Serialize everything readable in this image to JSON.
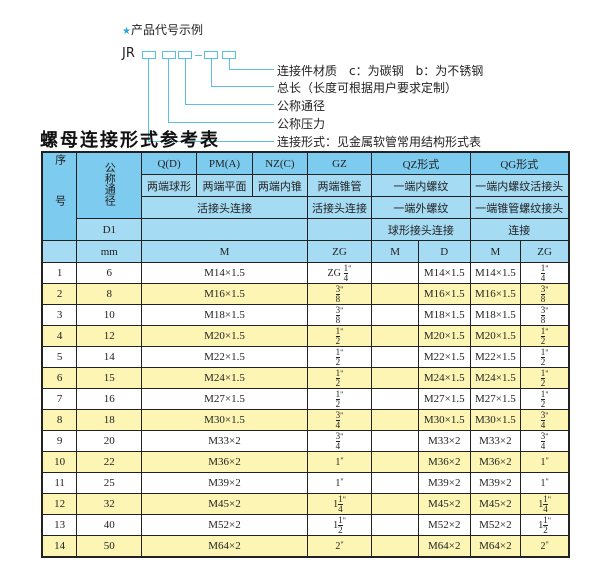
{
  "legend": {
    "heading": "产品代号示例",
    "code_prefix": "JR",
    "items": [
      "连接件材质　c：为碳钢　b：为不锈钢",
      "总长（长度可根据用户要求定制）",
      "公称通径",
      "公称压力",
      "连接形式：见金属软管常用结构形式表"
    ],
    "accent_color": "#5bbfe0"
  },
  "title": "螺母连接形式参考表",
  "header": {
    "seq": "序号",
    "nominal": "公称通径",
    "q": "Q(D)",
    "pm": "PM(A)",
    "nz": "NZ(C)",
    "gz": "GZ",
    "qz": "QZ形式",
    "qg": "QG形式",
    "q2": "两端球形",
    "pm2": "两端平面",
    "nz2": "两端内锥",
    "gz2": "两端锥管",
    "qz2": "一端内螺纹",
    "qg2": "一端内螺纹活接头",
    "union": "活接头连接",
    "gz3": "活接头连接",
    "qz3": "一端外螺纹",
    "qg3": "一端锥管螺纹接头",
    "d1": "D1",
    "qz4": "球形接头连接",
    "qg4": "连接",
    "mm": "mm",
    "m": "M",
    "zg": "ZG",
    "qz_m": "M",
    "qz_d": "D",
    "qg_m": "M",
    "qg_zg": "ZG"
  },
  "colors": {
    "header": "#7dcbee",
    "row_alt": "#fdf5b4"
  },
  "rows": [
    {
      "no": "1",
      "dn": "6",
      "m": "M14×1.5",
      "zg": {
        "pre": "ZG",
        "int": "",
        "num": "1",
        "den": "4",
        "suf": "\""
      },
      "qz_m": "",
      "qz_d": "M14×1.5",
      "qg_m": "M14×1.5",
      "qg_zg": {
        "pre": "",
        "int": "",
        "num": "1",
        "den": "4",
        "suf": "\""
      }
    },
    {
      "no": "2",
      "dn": "8",
      "m": "M16×1.5",
      "zg": {
        "pre": "",
        "int": "",
        "num": "3",
        "den": "8",
        "suf": "\""
      },
      "qz_m": "",
      "qz_d": "M16×1.5",
      "qg_m": "M16×1.5",
      "qg_zg": {
        "pre": "",
        "int": "",
        "num": "3",
        "den": "8",
        "suf": "\""
      }
    },
    {
      "no": "3",
      "dn": "10",
      "m": "M18×1.5",
      "zg": {
        "pre": "",
        "int": "",
        "num": "3",
        "den": "8",
        "suf": "\""
      },
      "qz_m": "",
      "qz_d": "M18×1.5",
      "qg_m": "M18×1.5",
      "qg_zg": {
        "pre": "",
        "int": "",
        "num": "3",
        "den": "8",
        "suf": "\""
      }
    },
    {
      "no": "4",
      "dn": "12",
      "m": "M20×1.5",
      "zg": {
        "pre": "",
        "int": "",
        "num": "1",
        "den": "2",
        "suf": "\""
      },
      "qz_m": "",
      "qz_d": "M20×1.5",
      "qg_m": "M20×1.5",
      "qg_zg": {
        "pre": "",
        "int": "",
        "num": "1",
        "den": "2",
        "suf": "\""
      }
    },
    {
      "no": "5",
      "dn": "14",
      "m": "M22×1.5",
      "zg": {
        "pre": "",
        "int": "",
        "num": "1",
        "den": "2",
        "suf": "\""
      },
      "qz_m": "",
      "qz_d": "M22×1.5",
      "qg_m": "M22×1.5",
      "qg_zg": {
        "pre": "",
        "int": "",
        "num": "1",
        "den": "2",
        "suf": "\""
      }
    },
    {
      "no": "6",
      "dn": "15",
      "m": "M24×1.5",
      "zg": {
        "pre": "",
        "int": "",
        "num": "1",
        "den": "2",
        "suf": "\""
      },
      "qz_m": "",
      "qz_d": "M24×1.5",
      "qg_m": "M24×1.5",
      "qg_zg": {
        "pre": "",
        "int": "",
        "num": "1",
        "den": "2",
        "suf": "\""
      }
    },
    {
      "no": "7",
      "dn": "16",
      "m": "M27×1.5",
      "zg": {
        "pre": "",
        "int": "",
        "num": "1",
        "den": "2",
        "suf": "\""
      },
      "qz_m": "",
      "qz_d": "M27×1.5",
      "qg_m": "M27×1.5",
      "qg_zg": {
        "pre": "",
        "int": "",
        "num": "1",
        "den": "2",
        "suf": "\""
      }
    },
    {
      "no": "8",
      "dn": "18",
      "m": "M30×1.5",
      "zg": {
        "pre": "",
        "int": "",
        "num": "3",
        "den": "4",
        "suf": "\""
      },
      "qz_m": "",
      "qz_d": "M30×1.5",
      "qg_m": "M30×1.5",
      "qg_zg": {
        "pre": "",
        "int": "",
        "num": "3",
        "den": "4",
        "suf": "\""
      }
    },
    {
      "no": "9",
      "dn": "20",
      "m": "M33×2",
      "zg": {
        "pre": "",
        "int": "",
        "num": "3",
        "den": "4",
        "suf": "\""
      },
      "qz_m": "",
      "qz_d": "M33×2",
      "qg_m": "M33×2",
      "qg_zg": {
        "pre": "",
        "int": "",
        "num": "3",
        "den": "4",
        "suf": "\""
      }
    },
    {
      "no": "10",
      "dn": "22",
      "m": "M36×2",
      "zg": {
        "pre": "",
        "int": "1",
        "num": "",
        "den": "",
        "suf": "\""
      },
      "qz_m": "",
      "qz_d": "M36×2",
      "qg_m": "M36×2",
      "qg_zg": {
        "pre": "",
        "int": "1",
        "num": "",
        "den": "",
        "suf": "\""
      }
    },
    {
      "no": "11",
      "dn": "25",
      "m": "M39×2",
      "zg": {
        "pre": "",
        "int": "1",
        "num": "",
        "den": "",
        "suf": "\""
      },
      "qz_m": "",
      "qz_d": "M39×2",
      "qg_m": "M39×2",
      "qg_zg": {
        "pre": "",
        "int": "1",
        "num": "",
        "den": "",
        "suf": "\""
      }
    },
    {
      "no": "12",
      "dn": "32",
      "m": "M45×2",
      "zg": {
        "pre": "",
        "int": "1",
        "num": "1",
        "den": "4",
        "suf": "\""
      },
      "qz_m": "",
      "qz_d": "M45×2",
      "qg_m": "M45×2",
      "qg_zg": {
        "pre": "",
        "int": "1",
        "num": "1",
        "den": "4",
        "suf": "\""
      }
    },
    {
      "no": "13",
      "dn": "40",
      "m": "M52×2",
      "zg": {
        "pre": "",
        "int": "1",
        "num": "1",
        "den": "2",
        "suf": "\""
      },
      "qz_m": "",
      "qz_d": "M52×2",
      "qg_m": "M52×2",
      "qg_zg": {
        "pre": "",
        "int": "1",
        "num": "1",
        "den": "2",
        "suf": "\""
      }
    },
    {
      "no": "14",
      "dn": "50",
      "m": "M64×2",
      "zg": {
        "pre": "",
        "int": "2",
        "num": "",
        "den": "",
        "suf": "\""
      },
      "qz_m": "",
      "qz_d": "M64×2",
      "qg_m": "M64×2",
      "qg_zg": {
        "pre": "",
        "int": "2",
        "num": "",
        "den": "",
        "suf": "\""
      }
    }
  ]
}
